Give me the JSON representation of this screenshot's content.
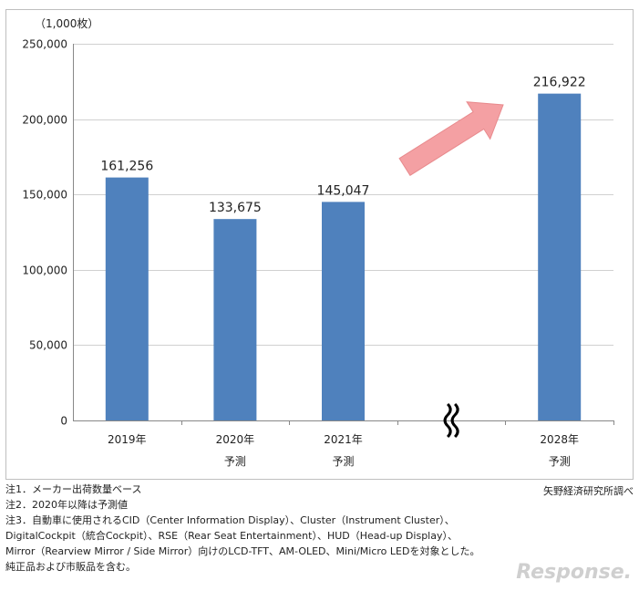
{
  "chart_data": {
    "type": "bar",
    "unit_label": "（1,000枚）",
    "categories": [
      {
        "year": "2019年",
        "sub": ""
      },
      {
        "year": "2020年",
        "sub": "予測"
      },
      {
        "year": "2021年",
        "sub": "予測"
      },
      {
        "year": "",
        "sub": ""
      },
      {
        "year": "2028年",
        "sub": "予測"
      }
    ],
    "values": [
      161256,
      133675,
      145047,
      null,
      216922
    ],
    "data_labels": [
      "161,256",
      "133,675",
      "145,047",
      "",
      "216,922"
    ],
    "y_ticks": [
      "0",
      "50,000",
      "100,000",
      "150,000",
      "200,000",
      "250,000"
    ],
    "ylim": [
      0,
      250000
    ],
    "grid": true,
    "bar_color": "#4f81bd",
    "arrow_color": "#f4a0a3",
    "break_symbol": "≀"
  },
  "notes": [
    "注1．メーカー出荷数量ベース",
    "注2．2020年以降は予測値",
    "注3．自動車に使用されるCID（Center Information Display）、Cluster（Instrument Cluster）、",
    "DigitalCockpit（統合Cockpit）、RSE（Rear Seat Entertainment）、HUD（Head-up Display）、",
    "Mirror（Rearview Mirror / Side Mirror）向けのLCD-TFT、AM-OLED、Mini/Micro LEDを対象とした。",
    "純正品および市販品を含む。"
  ],
  "source": "矢野経済研究所調べ",
  "watermark": "Response."
}
